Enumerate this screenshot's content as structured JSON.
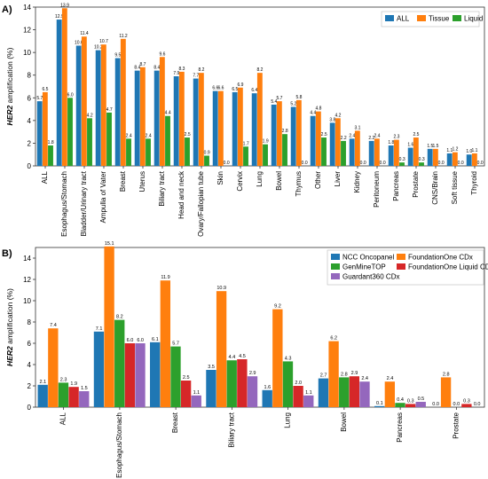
{
  "chart_data": [
    {
      "type": "bar",
      "panel_label": "A)",
      "ylabel": "HER2 amplification (%)",
      "ylabel_italic_part": "HER2",
      "ylabel_rest": " amplification (%)",
      "ylim": [
        0,
        14
      ],
      "yticks": [
        0,
        2,
        4,
        6,
        8,
        10,
        12,
        14
      ],
      "legend_position": "top-right",
      "categories": [
        "ALL",
        "Esophagus/Stomach",
        "Bladder/Urinary tract",
        "Ampulla of Vater",
        "Breast",
        "Uterus",
        "Biliary tract",
        "Head and neck",
        "Ovary/Fallopian tube",
        "Skin",
        "Cervix",
        "Lung",
        "Bowel",
        "Thymus",
        "Other",
        "Liver",
        "Kidney",
        "Peritoneum",
        "Pancreas",
        "Prostate",
        "CNS/Brain",
        "Soft tissue",
        "Thyroid"
      ],
      "series": [
        {
          "name": "ALL",
          "color": "#1f77b4",
          "values": [
            5.7,
            12.9,
            10.6,
            10.2,
            9.5,
            8.4,
            8.4,
            7.9,
            7.7,
            6.6,
            6.5,
            6.4,
            5.4,
            5.2,
            4.4,
            3.8,
            2.4,
            2.2,
            1.8,
            1.6,
            1.5,
            1.1,
            1.0
          ]
        },
        {
          "name": "Tissue",
          "color": "#ff7f0e",
          "values": [
            6.5,
            13.9,
            11.4,
            10.7,
            11.2,
            8.7,
            9.6,
            8.3,
            8.2,
            6.6,
            6.9,
            8.2,
            5.7,
            5.8,
            4.8,
            4.2,
            3.1,
            2.4,
            2.3,
            2.5,
            1.5,
            1.2,
            1.1
          ]
        },
        {
          "name": "Liquid",
          "color": "#2ca02c",
          "values": [
            1.8,
            6.0,
            4.2,
            4.7,
            2.4,
            2.4,
            4.4,
            2.5,
            0.9,
            0.0,
            1.7,
            1.9,
            2.8,
            0.0,
            2.5,
            2.2,
            0.0,
            0.0,
            0.3,
            0.3,
            0.0,
            0.0,
            0.0
          ]
        }
      ]
    },
    {
      "type": "bar",
      "panel_label": "B)",
      "ylabel": "HER2 amplification (%)",
      "ylabel_italic_part": "HER2",
      "ylabel_rest": " amplification (%)",
      "ylim": [
        0,
        15
      ],
      "yticks": [
        0,
        2,
        4,
        6,
        8,
        10,
        12,
        14
      ],
      "legend_position": "top-right",
      "categories": [
        "ALL",
        "Esophagus/Stomach",
        "Breast",
        "Biliary tract",
        "Lung",
        "Bowel",
        "Pancreas",
        "Prostate"
      ],
      "series": [
        {
          "name": "NCC Oncopanel",
          "color": "#1f77b4",
          "values": [
            2.1,
            7.1,
            6.1,
            3.5,
            1.6,
            2.7,
            0.1,
            0.0
          ]
        },
        {
          "name": "FoundationOne CDx",
          "color": "#ff7f0e",
          "values": [
            7.4,
            15.1,
            11.9,
            10.9,
            9.2,
            6.2,
            2.4,
            2.8
          ]
        },
        {
          "name": "GenMineTOP",
          "color": "#2ca02c",
          "values": [
            2.3,
            8.2,
            5.7,
            4.4,
            4.3,
            2.8,
            0.4,
            0.0
          ]
        },
        {
          "name": "FoundationOne Liquid CDx",
          "color": "#d62728",
          "values": [
            1.9,
            6.0,
            2.5,
            4.5,
            2.0,
            2.9,
            0.3,
            0.3
          ]
        },
        {
          "name": "Guardant360 CDx",
          "color": "#9467bd",
          "values": [
            1.5,
            6.0,
            1.1,
            2.9,
            1.1,
            2.4,
            0.5,
            0.0
          ]
        }
      ]
    }
  ]
}
